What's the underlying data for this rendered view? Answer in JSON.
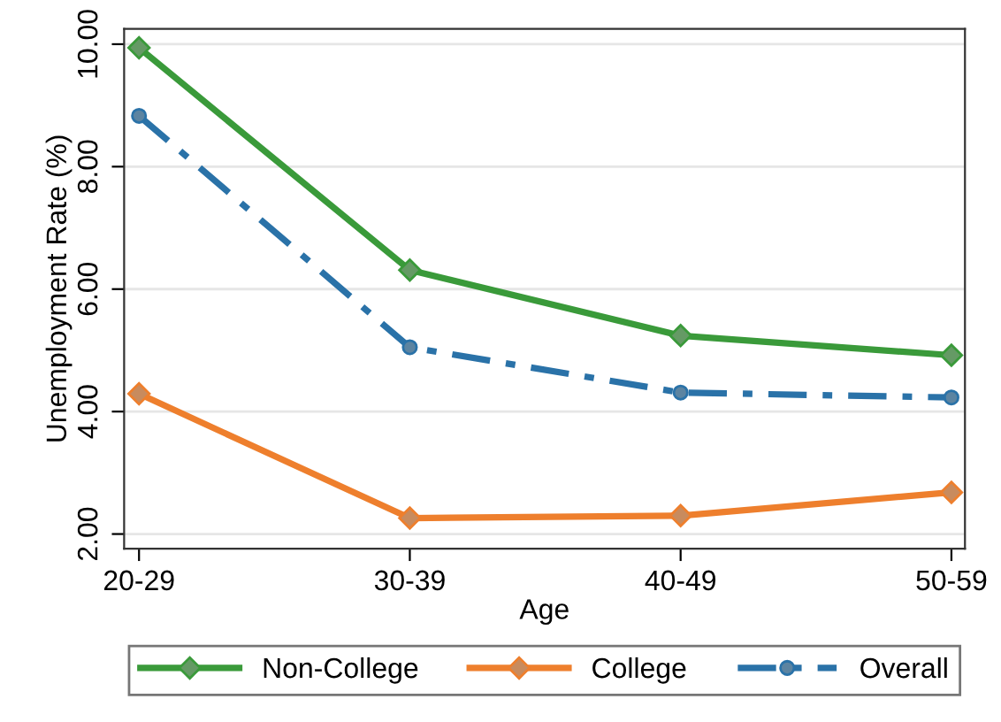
{
  "chart_data": {
    "type": "line",
    "xlabel": "Age",
    "ylabel": "Unemployment Rate (%)",
    "categories": [
      "20-29",
      "30-39",
      "40-49",
      "50-59"
    ],
    "series": [
      {
        "name": "Non-College",
        "color": "#3a9a3a",
        "values": [
          9.94,
          6.31,
          5.24,
          4.92
        ],
        "marker": "diamond",
        "line_style": "solid"
      },
      {
        "name": "College",
        "color": "#ee7f2d",
        "values": [
          4.29,
          2.26,
          2.3,
          2.68
        ],
        "marker": "diamond",
        "line_style": "solid"
      },
      {
        "name": "Overall",
        "color": "#2a72a8",
        "values": [
          8.83,
          5.05,
          4.31,
          4.23
        ],
        "marker": "circle",
        "line_style": "dashdot"
      }
    ],
    "ylim": [
      1.76,
      10.25
    ],
    "yticks": [
      {
        "value": 2,
        "label": "2.00"
      },
      {
        "value": 4,
        "label": "4.00"
      },
      {
        "value": 6,
        "label": "6.00"
      },
      {
        "value": 8,
        "label": "8.00"
      },
      {
        "value": 10,
        "label": "10.00"
      }
    ],
    "grid": "y",
    "legend": "bottom"
  }
}
